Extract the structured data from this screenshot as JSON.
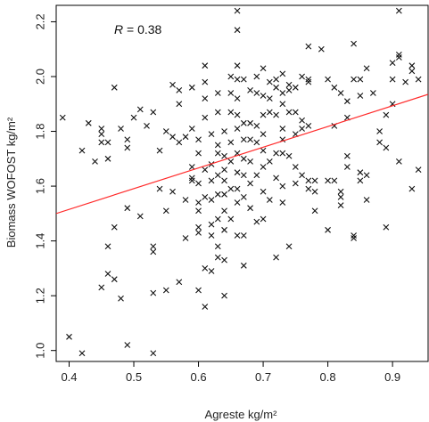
{
  "chart_data": {
    "type": "scatter",
    "xlabel": "Agreste kg/m²",
    "ylabel": "Biomass WOFOST kg/m²",
    "xlim": [
      0.38,
      0.955
    ],
    "ylim": [
      0.96,
      2.26
    ],
    "x_ticks": [
      0.4,
      0.5,
      0.6,
      0.7,
      0.8,
      0.9
    ],
    "x_tick_labels": [
      "0.4",
      "0.5",
      "0.6",
      "0.7",
      "0.8",
      "0.9"
    ],
    "y_ticks": [
      1.0,
      1.2,
      1.4,
      1.6,
      1.8,
      2.0,
      2.2
    ],
    "y_tick_labels": [
      "1.0",
      "1.2",
      "1.4",
      "1.6",
      "1.8",
      "2.0",
      "2.2"
    ],
    "annotation": {
      "symbol": "R",
      "text": " = 0.38"
    },
    "marker": "x",
    "marker_color": "#111111",
    "regression_line": {
      "color": "#ff2a2a",
      "x": [
        0.38,
        0.955
      ],
      "y": [
        1.5,
        1.935
      ]
    },
    "grid": false,
    "legend": "none",
    "points": [
      [
        0.39,
        1.85
      ],
      [
        0.4,
        1.05
      ],
      [
        0.42,
        0.99
      ],
      [
        0.42,
        1.73
      ],
      [
        0.43,
        1.83
      ],
      [
        0.44,
        1.69
      ],
      [
        0.45,
        1.81
      ],
      [
        0.45,
        1.79
      ],
      [
        0.45,
        1.76
      ],
      [
        0.45,
        1.23
      ],
      [
        0.46,
        1.38
      ],
      [
        0.46,
        1.28
      ],
      [
        0.46,
        1.76
      ],
      [
        0.46,
        1.7
      ],
      [
        0.47,
        1.96
      ],
      [
        0.47,
        1.45
      ],
      [
        0.47,
        1.26
      ],
      [
        0.48,
        1.19
      ],
      [
        0.48,
        1.81
      ],
      [
        0.49,
        1.77
      ],
      [
        0.49,
        1.74
      ],
      [
        0.49,
        1.52
      ],
      [
        0.49,
        1.02
      ],
      [
        0.5,
        1.85
      ],
      [
        0.51,
        1.88
      ],
      [
        0.51,
        1.49
      ],
      [
        0.52,
        1.82
      ],
      [
        0.53,
        1.87
      ],
      [
        0.53,
        1.38
      ],
      [
        0.53,
        1.36
      ],
      [
        0.53,
        1.21
      ],
      [
        0.53,
        0.99
      ],
      [
        0.54,
        1.59
      ],
      [
        0.54,
        1.73
      ],
      [
        0.55,
        1.8
      ],
      [
        0.55,
        1.51
      ],
      [
        0.55,
        1.22
      ],
      [
        0.56,
        1.97
      ],
      [
        0.56,
        1.78
      ],
      [
        0.56,
        1.58
      ],
      [
        0.57,
        1.76
      ],
      [
        0.57,
        1.95
      ],
      [
        0.57,
        1.9
      ],
      [
        0.57,
        1.25
      ],
      [
        0.58,
        1.78
      ],
      [
        0.58,
        1.41
      ],
      [
        0.58,
        1.55
      ],
      [
        0.59,
        1.96
      ],
      [
        0.59,
        1.81
      ],
      [
        0.59,
        1.67
      ],
      [
        0.59,
        1.63
      ],
      [
        0.59,
        1.62
      ],
      [
        0.6,
        1.43
      ],
      [
        0.6,
        1.54
      ],
      [
        0.6,
        1.51
      ],
      [
        0.6,
        1.45
      ],
      [
        0.6,
        1.61
      ],
      [
        0.6,
        1.22
      ],
      [
        0.6,
        1.72
      ],
      [
        0.6,
        1.77
      ],
      [
        0.61,
        2.04
      ],
      [
        0.61,
        1.98
      ],
      [
        0.61,
        1.92
      ],
      [
        0.61,
        1.85
      ],
      [
        0.61,
        1.66
      ],
      [
        0.61,
        1.56
      ],
      [
        0.61,
        1.3
      ],
      [
        0.61,
        1.16
      ],
      [
        0.62,
        1.79
      ],
      [
        0.62,
        1.68
      ],
      [
        0.62,
        1.62
      ],
      [
        0.62,
        1.55
      ],
      [
        0.62,
        1.46
      ],
      [
        0.62,
        1.42
      ],
      [
        0.62,
        1.29
      ],
      [
        0.63,
        1.94
      ],
      [
        0.63,
        1.87
      ],
      [
        0.63,
        1.75
      ],
      [
        0.63,
        1.72
      ],
      [
        0.63,
        1.64
      ],
      [
        0.63,
        1.57
      ],
      [
        0.63,
        1.48
      ],
      [
        0.63,
        1.38
      ],
      [
        0.63,
        1.34
      ],
      [
        0.64,
        1.8
      ],
      [
        0.64,
        1.71
      ],
      [
        0.64,
        1.66
      ],
      [
        0.64,
        1.62
      ],
      [
        0.64,
        1.57
      ],
      [
        0.64,
        1.51
      ],
      [
        0.64,
        1.44
      ],
      [
        0.64,
        1.33
      ],
      [
        0.64,
        1.2
      ],
      [
        0.65,
        2.0
      ],
      [
        0.65,
        1.94
      ],
      [
        0.65,
        1.87
      ],
      [
        0.65,
        1.76
      ],
      [
        0.65,
        1.69
      ],
      [
        0.65,
        1.59
      ],
      [
        0.65,
        1.48
      ],
      [
        0.66,
        2.24
      ],
      [
        0.66,
        2.17
      ],
      [
        0.66,
        2.04
      ],
      [
        0.66,
        1.99
      ],
      [
        0.66,
        1.92
      ],
      [
        0.66,
        1.86
      ],
      [
        0.66,
        1.81
      ],
      [
        0.66,
        1.72
      ],
      [
        0.66,
        1.65
      ],
      [
        0.66,
        1.59
      ],
      [
        0.66,
        1.54
      ],
      [
        0.66,
        1.42
      ],
      [
        0.67,
        1.99
      ],
      [
        0.67,
        1.83
      ],
      [
        0.67,
        1.77
      ],
      [
        0.67,
        1.7
      ],
      [
        0.67,
        1.64
      ],
      [
        0.67,
        1.56
      ],
      [
        0.67,
        1.42
      ],
      [
        0.67,
        1.31
      ],
      [
        0.68,
        1.95
      ],
      [
        0.68,
        1.83
      ],
      [
        0.68,
        1.77
      ],
      [
        0.68,
        1.69
      ],
      [
        0.68,
        1.61
      ],
      [
        0.68,
        1.52
      ],
      [
        0.69,
        2.0
      ],
      [
        0.69,
        1.94
      ],
      [
        0.69,
        1.82
      ],
      [
        0.69,
        1.76
      ],
      [
        0.69,
        1.64
      ],
      [
        0.69,
        1.47
      ],
      [
        0.7,
        2.03
      ],
      [
        0.7,
        1.93
      ],
      [
        0.7,
        1.86
      ],
      [
        0.7,
        1.79
      ],
      [
        0.7,
        1.73
      ],
      [
        0.7,
        1.67
      ],
      [
        0.7,
        1.58
      ],
      [
        0.7,
        1.48
      ],
      [
        0.71,
        1.98
      ],
      [
        0.71,
        1.92
      ],
      [
        0.71,
        1.87
      ],
      [
        0.71,
        1.69
      ],
      [
        0.71,
        1.55
      ],
      [
        0.72,
        1.99
      ],
      [
        0.72,
        1.96
      ],
      [
        0.72,
        1.86
      ],
      [
        0.72,
        1.72
      ],
      [
        0.72,
        1.63
      ],
      [
        0.72,
        1.34
      ],
      [
        0.73,
        2.01
      ],
      [
        0.73,
        1.94
      ],
      [
        0.73,
        1.9
      ],
      [
        0.73,
        1.81
      ],
      [
        0.73,
        1.77
      ],
      [
        0.73,
        1.72
      ],
      [
        0.73,
        1.6
      ],
      [
        0.73,
        1.54
      ],
      [
        0.74,
        1.97
      ],
      [
        0.74,
        1.95
      ],
      [
        0.74,
        1.87
      ],
      [
        0.74,
        1.71
      ],
      [
        0.74,
        1.38
      ],
      [
        0.75,
        1.96
      ],
      [
        0.75,
        1.87
      ],
      [
        0.75,
        1.79
      ],
      [
        0.75,
        1.67
      ],
      [
        0.75,
        1.61
      ],
      [
        0.76,
        2.0
      ],
      [
        0.76,
        1.84
      ],
      [
        0.76,
        1.81
      ],
      [
        0.76,
        1.64
      ],
      [
        0.77,
        2.11
      ],
      [
        0.77,
        1.99
      ],
      [
        0.77,
        1.98
      ],
      [
        0.77,
        1.82
      ],
      [
        0.77,
        1.62
      ],
      [
        0.77,
        1.59
      ],
      [
        0.78,
        1.62
      ],
      [
        0.78,
        1.58
      ],
      [
        0.78,
        1.51
      ],
      [
        0.79,
        2.1
      ],
      [
        0.8,
        1.99
      ],
      [
        0.8,
        1.62
      ],
      [
        0.8,
        1.44
      ],
      [
        0.81,
        1.96
      ],
      [
        0.81,
        1.82
      ],
      [
        0.81,
        1.62
      ],
      [
        0.82,
        1.58
      ],
      [
        0.82,
        1.56
      ],
      [
        0.82,
        1.53
      ],
      [
        0.82,
        1.94
      ],
      [
        0.83,
        1.91
      ],
      [
        0.83,
        1.85
      ],
      [
        0.83,
        1.71
      ],
      [
        0.83,
        1.67
      ],
      [
        0.84,
        2.12
      ],
      [
        0.84,
        1.99
      ],
      [
        0.84,
        1.41
      ],
      [
        0.84,
        1.42
      ],
      [
        0.85,
        1.99
      ],
      [
        0.85,
        1.93
      ],
      [
        0.85,
        1.65
      ],
      [
        0.85,
        1.62
      ],
      [
        0.86,
        2.03
      ],
      [
        0.86,
        1.55
      ],
      [
        0.86,
        1.64
      ],
      [
        0.87,
        1.94
      ],
      [
        0.88,
        1.8
      ],
      [
        0.88,
        1.76
      ],
      [
        0.89,
        1.86
      ],
      [
        0.89,
        1.74
      ],
      [
        0.89,
        1.45
      ],
      [
        0.9,
        2.05
      ],
      [
        0.9,
        1.99
      ],
      [
        0.9,
        1.9
      ],
      [
        0.91,
        2.24
      ],
      [
        0.91,
        2.07
      ],
      [
        0.91,
        2.08
      ],
      [
        0.91,
        1.69
      ],
      [
        0.92,
        1.98
      ],
      [
        0.93,
        2.04
      ],
      [
        0.93,
        2.02
      ],
      [
        0.93,
        1.59
      ],
      [
        0.94,
        1.99
      ],
      [
        0.94,
        1.66
      ]
    ]
  }
}
